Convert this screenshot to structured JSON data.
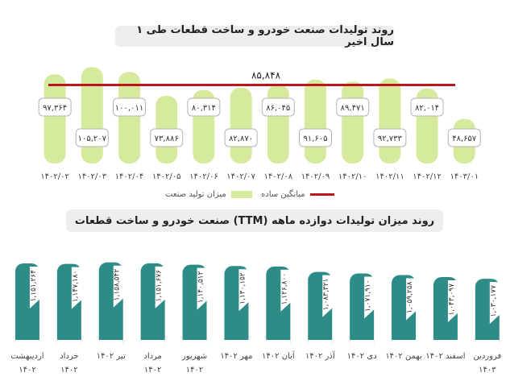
{
  "chart_data": [
    {
      "type": "bar",
      "title": "روند تولیدات صنعت خودرو و ساخت قطعات طی ۱ سال اخیر",
      "categories": [
        "۱۴۰۲/۰۲",
        "۱۴۰۲/۰۳",
        "۱۴۰۲/۰۴",
        "۱۴۰۲/۰۵",
        "۱۴۰۲/۰۶",
        "۱۴۰۲/۰۷",
        "۱۴۰۲/۰۸",
        "۱۴۰۲/۰۹",
        "۱۴۰۲/۱۰",
        "۱۴۰۲/۱۱",
        "۱۴۰۲/۱۲",
        "۱۴۰۳/۰۱"
      ],
      "values": [
        97364,
        105207,
        100011,
        73886,
        80314,
        82870,
        86045,
        91605,
        89471,
        92733,
        82014,
        48657
      ],
      "value_labels": [
        "۹۷,۳۶۴",
        "۱۰۵,۲۰۷",
        "۱۰۰,۰۱۱",
        "۷۳,۸۸۶",
        "۸۰,۳۱۴",
        "۸۲,۸۷۰",
        "۸۶,۰۴۵",
        "۹۱,۶۰۵",
        "۸۹,۴۷۱",
        "۹۲,۷۳۳",
        "۸۲,۰۱۴",
        "۴۸,۶۵۷"
      ],
      "average": 85848,
      "average_label": "۸۵,۸۴۸",
      "series_names": {
        "bars": "میزان تولید صنعت",
        "line": "میانگین ساده"
      },
      "colors": {
        "bars": "#d6ea9e",
        "line": "#c0141b"
      },
      "legend": "bottom",
      "ylim": [
        0,
        110000
      ]
    },
    {
      "type": "bar",
      "title": "روند میزان تولیدات دوازده ماهه (TTM) صنعت خودرو و ساخت قطعات",
      "categories": [
        [
          "اردیبهشت",
          "۱۴۰۲"
        ],
        [
          "خرداد",
          "۱۴۰۲"
        ],
        [
          "تیر ۱۴۰۲"
        ],
        [
          "مرداد",
          "۱۴۰۲"
        ],
        [
          "شهریور",
          "۱۴۰۲"
        ],
        [
          "مهر ۱۴۰۲"
        ],
        [
          "آبان ۱۴۰۲"
        ],
        [
          "آذر ۱۴۰۲"
        ],
        [
          "دی ۱۴۰۲"
        ],
        [
          "بهمن ۱۴۰۲"
        ],
        [
          "اسفند ۱۴۰۲"
        ],
        [
          "فروردین",
          "۱۴۰۳"
        ]
      ],
      "values": [
        1151264,
        1147180,
        1158542,
        1151676,
        1140512,
        1130152,
        1126800,
        1083321,
        1071910,
        1059258,
        1043097,
        1030177
      ],
      "value_labels": [
        "۱,۱۵۱,۲۶۴",
        "۱,۱۴۷,۱۸۰",
        "۱,۱۵۸,۵۴۲",
        "۱,۱۵۱,۶۷۶",
        "۱,۱۴۰,۵۱۲",
        "۱,۱۳۰,۱۵۲",
        "۱,۱۲۶,۸۰۰",
        "۱,۰۸۳,۳۲۱",
        "۱,۰۷۱,۹۱۰",
        "۱,۰۵۹,۲۵۸",
        "۱,۰۴۳,۰۹۷",
        "۱,۰۳۰,۱۷۷"
      ],
      "colors": {
        "bars": "#2e8c88"
      }
    }
  ]
}
